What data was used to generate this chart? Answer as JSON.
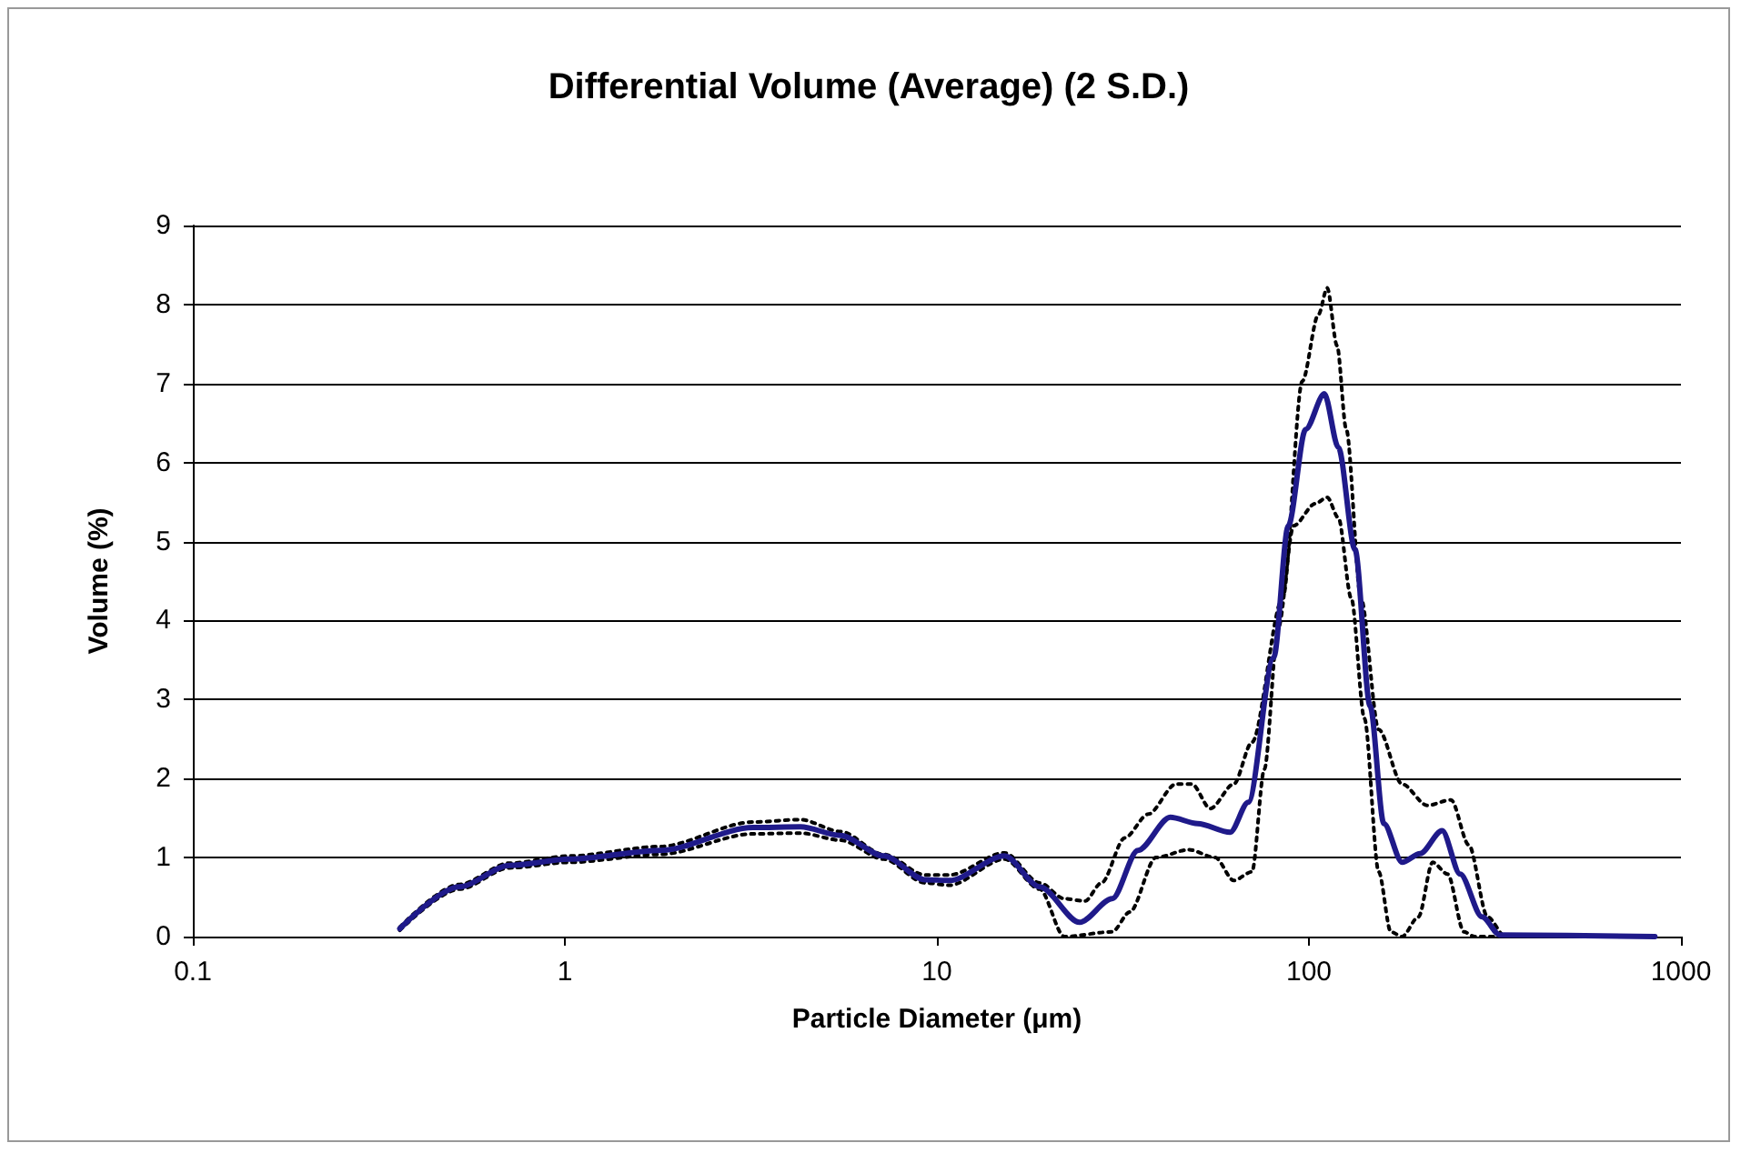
{
  "chart_data": {
    "type": "line",
    "title": "Differential Volume (Average) (2 S.D.)",
    "xlabel": "Particle Diameter (μm)",
    "ylabel": "Volume (%)",
    "log": "x",
    "xlim": [
      0.1,
      1000
    ],
    "xticks": [
      0.1,
      1,
      10,
      100,
      1000
    ],
    "ylim": [
      0,
      9
    ],
    "yticks": [
      0,
      1,
      2,
      3,
      4,
      5,
      6,
      7,
      8,
      9
    ],
    "grid": "y",
    "series": [
      {
        "color": "#000000",
        "line_style": "dotted",
        "x": [
          0.36,
          0.52,
          0.71,
          1.03,
          1.8,
          3.2,
          4.3,
          5.5,
          7.2,
          9.3,
          10.8,
          15.2,
          18.9,
          22,
          25,
          27.7,
          32,
          37,
          43.9,
          48.5,
          54.3,
          62.8,
          70.3,
          85,
          96,
          106,
          112,
          119,
          126,
          138,
          154,
          178,
          208,
          241,
          269,
          302,
          337,
          851
        ],
        "values": [
          0.12,
          0.66,
          0.93,
          1.02,
          1.14,
          1.45,
          1.48,
          1.33,
          1.04,
          0.78,
          0.78,
          1.06,
          0.68,
          0.48,
          0.45,
          0.68,
          1.25,
          1.55,
          1.93,
          1.93,
          1.62,
          1.93,
          2.46,
          4.28,
          7.03,
          7.87,
          8.21,
          7.48,
          6.42,
          4.28,
          2.62,
          1.93,
          1.66,
          1.73,
          1.16,
          0.25,
          0,
          0
        ]
      },
      {
        "color": "#000000",
        "line_style": "dotted",
        "x": [
          0.36,
          0.52,
          0.71,
          1.03,
          1.8,
          3.2,
          4.3,
          5.5,
          7.2,
          9.3,
          10.8,
          15.2,
          18.9,
          22,
          29.6,
          33,
          38.8,
          47.5,
          56,
          62.8,
          70.3,
          75.9,
          82.6,
          91,
          104,
          112,
          120,
          130,
          141,
          154,
          166,
          178,
          197,
          215,
          236,
          261,
          279,
          851
        ],
        "values": [
          0.08,
          0.6,
          0.87,
          0.94,
          1.04,
          1.3,
          1.31,
          1.22,
          0.98,
          0.68,
          0.65,
          0.98,
          0.6,
          0,
          0.06,
          0.31,
          1.0,
          1.1,
          1.0,
          0.71,
          0.82,
          2.12,
          3.9,
          5.2,
          5.48,
          5.56,
          5.3,
          4.28,
          2.76,
          0.82,
          0.06,
          0,
          0.25,
          0.94,
          0.79,
          0.06,
          0,
          0
        ]
      },
      {
        "color": "#1f1a8a",
        "line_style": "solid",
        "x": [
          0.36,
          0.52,
          0.71,
          1.03,
          1.8,
          3.2,
          4.3,
          5.5,
          7.2,
          9.3,
          10.8,
          15.2,
          18.9,
          24.2,
          29.6,
          34.7,
          42.4,
          50.2,
          61.4,
          68.7,
          80.4,
          88,
          98,
          110,
          120,
          133,
          146,
          159,
          178,
          199,
          228,
          255,
          292,
          326,
          851
        ],
        "values": [
          0.1,
          0.63,
          0.9,
          0.98,
          1.09,
          1.38,
          1.39,
          1.28,
          1.02,
          0.72,
          0.71,
          1.02,
          0.63,
          0.18,
          0.48,
          1.09,
          1.51,
          1.43,
          1.32,
          1.7,
          3.53,
          5.2,
          6.42,
          6.87,
          6.19,
          4.9,
          2.92,
          1.43,
          0.94,
          1.05,
          1.34,
          0.79,
          0.25,
          0.02,
          0
        ]
      }
    ]
  }
}
